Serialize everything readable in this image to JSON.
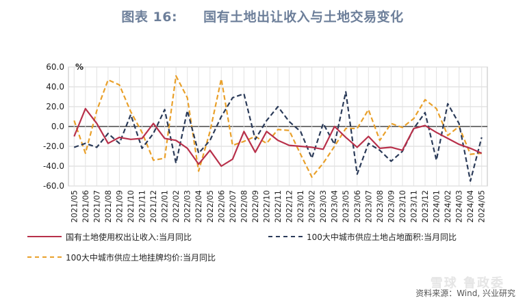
{
  "header": {
    "title_prefix": "图表 16:",
    "title_text": "国有土地出让收入与土地交易变化"
  },
  "chart_data": {
    "type": "line",
    "title": "国有土地出让收入与土地交易变化",
    "ylabel": "%",
    "ylim": [
      -60,
      60
    ],
    "yticks": [
      60,
      40,
      20,
      0,
      -20,
      -40,
      -60
    ],
    "ytick_labels": [
      "60.0",
      "40.0",
      "20.0",
      "0.0",
      "-20.0",
      "-40.0",
      "-60.0"
    ],
    "grid": true,
    "categories": [
      "2021/05",
      "2021/06",
      "2021/07",
      "2021/08",
      "2021/09",
      "2021/10",
      "2021/11",
      "2021/12",
      "2022/01",
      "2022/02",
      "2022/03",
      "2022/04",
      "2022/05",
      "2022/06",
      "2022/07",
      "2022/08",
      "2022/09",
      "2022/10",
      "2022/11",
      "2022/12",
      "2023/01",
      "2023/02",
      "2023/03",
      "2023/04",
      "2023/05",
      "2023/06",
      "2023/07",
      "2023/08",
      "2023/09",
      "2023/10",
      "2023/11",
      "2023/12",
      "2024/01",
      "2024/02",
      "2024/03",
      "2024/04",
      "2024/05"
    ],
    "series": [
      {
        "name": "国有土地使用权出让收入:当月同比",
        "color": "#b8304a",
        "style": "solid",
        "values": [
          -10,
          18,
          3,
          -17,
          -11,
          -13,
          -12,
          3,
          -12,
          -14,
          -22,
          -38,
          -24,
          -40,
          -33,
          -5,
          -26,
          -5,
          -14,
          -19,
          -20,
          -21,
          -23,
          0,
          -11,
          -21,
          -10,
          -22,
          -21,
          -24,
          -2,
          1,
          -6,
          -12,
          -18,
          -22,
          -27
        ]
      },
      {
        "name": "100大中城市供应土地占地面积:当月同比",
        "color": "#2b3b59",
        "style": "dashed",
        "values": [
          -21,
          -17,
          -21,
          -7,
          -17,
          12,
          -22,
          -7,
          17,
          -37,
          16,
          -27,
          -14,
          10,
          29,
          33,
          -13,
          6,
          20,
          5,
          -5,
          -32,
          3,
          -18,
          35,
          -48,
          -17,
          -24,
          -35,
          -25,
          -2,
          14,
          -34,
          23,
          3,
          -55,
          -11
        ]
      },
      {
        "name": "100大中城市供应土地挂牌均价:当月同比",
        "color": "#e9a02a",
        "style": "dashed",
        "values": [
          6,
          -27,
          16,
          47,
          42,
          15,
          -6,
          -34,
          -32,
          51,
          29,
          -45,
          -5,
          48,
          -19,
          -15,
          -10,
          -17,
          -3,
          -4,
          -28,
          -51,
          -37,
          -20,
          -2,
          -2,
          17,
          -14,
          3,
          -1,
          8,
          27,
          18,
          -9,
          0,
          -28,
          -27
        ]
      }
    ]
  },
  "legend": {
    "item1": "国有土地使用权出让收入:当月同比",
    "item2": "100大中城市供应土地占地面积:当月同比",
    "item3": "100大中城市供应土地挂牌均价:当月同比"
  },
  "footer": {
    "source": "资料来源：Wind, 兴业研究",
    "watermark": "雪球 鲁政委"
  }
}
